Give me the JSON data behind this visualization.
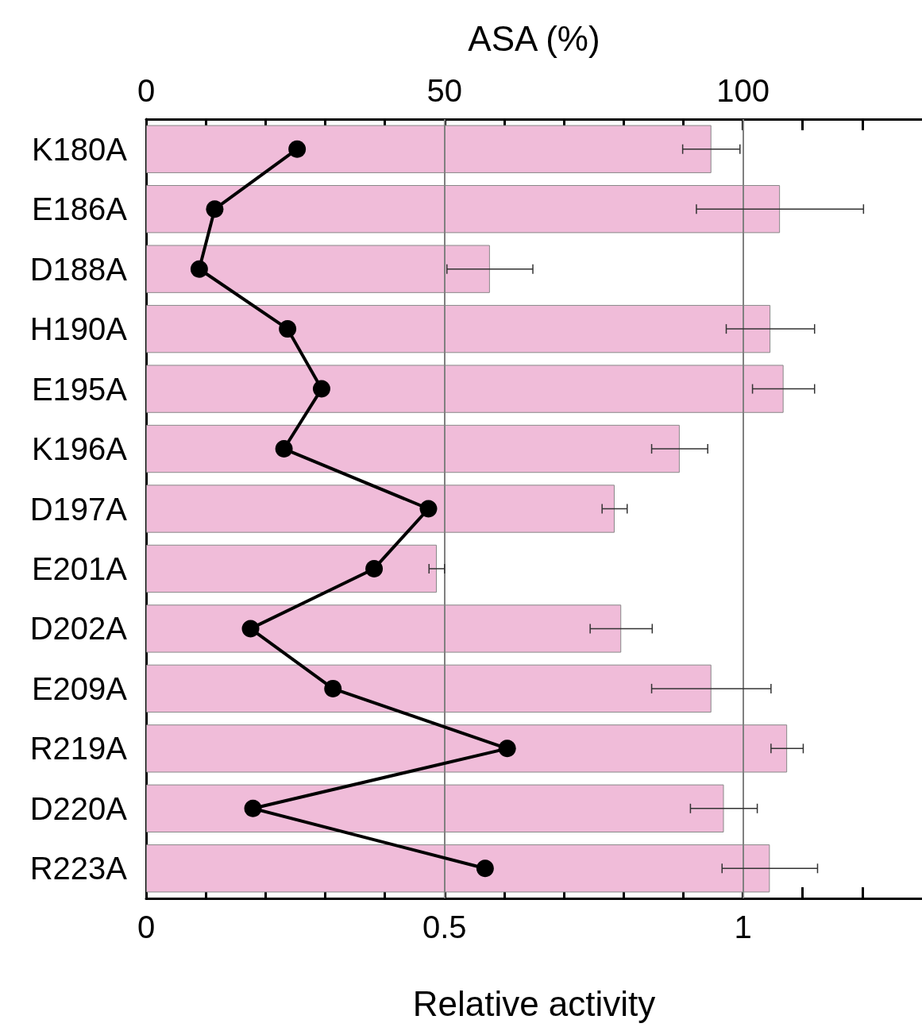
{
  "chart_data": {
    "type": "bar",
    "orientation": "horizontal",
    "xlabel": "Relative activity",
    "x2label": "ASA (%)",
    "categories": [
      "K180A",
      "E186A",
      "D188A",
      "H190A",
      "E195A",
      "K196A",
      "D197A",
      "E201A",
      "D202A",
      "E209A",
      "R219A",
      "D220A",
      "R223A"
    ],
    "series": [
      {
        "color": "#f0bcd9",
        "values": [
          0.947,
          1.062,
          0.576,
          1.046,
          1.068,
          0.894,
          0.785,
          0.487,
          0.796,
          0.947,
          1.074,
          0.968,
          1.045
        ],
        "errors": [
          0.048,
          0.14,
          0.072,
          0.074,
          0.052,
          0.047,
          0.021,
          0.013,
          0.052,
          0.1,
          0.027,
          0.056,
          0.08
        ]
      },
      {
        "type": "line",
        "axis": "x2",
        "color": "#000000",
        "marker": "circle",
        "line_style": "solid",
        "values": [
          25.3,
          11.5,
          8.9,
          23.7,
          29.4,
          23.1,
          47.3,
          38.2,
          17.5,
          31.3,
          60.5,
          17.9,
          56.8
        ]
      }
    ],
    "xlim": [
      0,
      1.3
    ],
    "xticks": [
      0,
      {
        "value": 0.1,
        "label": null
      },
      {
        "value": 0.2,
        "label": null
      },
      {
        "value": 0.3,
        "label": null
      },
      {
        "value": 0.4,
        "label": null
      },
      0.5,
      {
        "value": 0.6,
        "label": null
      },
      {
        "value": 0.7,
        "label": null
      },
      {
        "value": 0.8,
        "label": null
      },
      {
        "value": 0.9,
        "label": null
      },
      1,
      {
        "value": 1.1,
        "label": null
      },
      {
        "value": 1.2,
        "label": null
      }
    ],
    "x2lim": [
      0,
      130
    ],
    "x2ticks": [
      0,
      {
        "value": 10,
        "label": null
      },
      {
        "value": 20,
        "label": null
      },
      {
        "value": 30,
        "label": null
      },
      {
        "value": 40,
        "label": null
      },
      50,
      {
        "value": 60,
        "label": null
      },
      {
        "value": 70,
        "label": null
      },
      {
        "value": 80,
        "label": null
      },
      {
        "value": 90,
        "label": null
      },
      100,
      {
        "value": 110,
        "label": null
      },
      {
        "value": 120,
        "label": null
      }
    ],
    "ref_lines": [
      {
        "axis": "x",
        "value": 0.5,
        "color": "#808080"
      },
      {
        "axis": "x",
        "value": 1,
        "color": "#808080"
      }
    ]
  }
}
